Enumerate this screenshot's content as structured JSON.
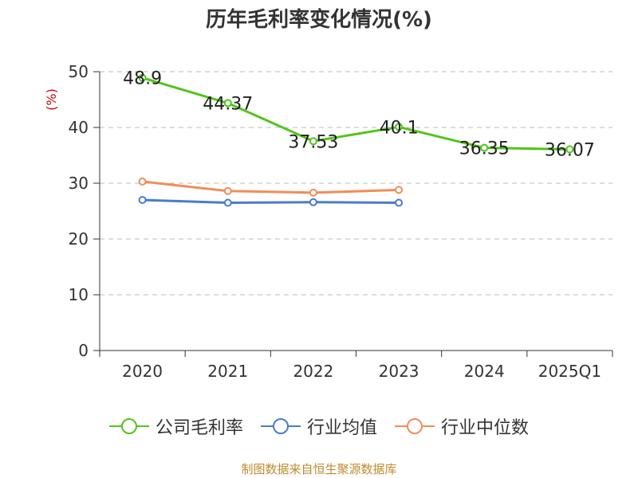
{
  "chart_data": {
    "type": "line",
    "title": "历年毛利率变化情况(%)",
    "ylabel": "(%)",
    "xlabel": "",
    "categories": [
      "2020",
      "2021",
      "2022",
      "2023",
      "2024",
      "2025Q1"
    ],
    "ylim": [
      0,
      50
    ],
    "yticks": [
      0,
      10,
      20,
      30,
      40,
      50
    ],
    "grid": true,
    "legend_position": "bottom",
    "series": [
      {
        "name": "公司毛利率",
        "color": "#52c41a",
        "values": [
          48.9,
          44.37,
          37.53,
          40.1,
          36.35,
          36.07
        ],
        "labels": [
          "48.9",
          "44.37",
          "37.53",
          "40.1",
          "36.35",
          "36.07"
        ]
      },
      {
        "name": "行业均值",
        "color": "#4a7bd0",
        "values": [
          27.0,
          26.5,
          26.6,
          26.5,
          null,
          null
        ]
      },
      {
        "name": "行业中位数",
        "color": "#f28c5a",
        "values": [
          30.3,
          28.6,
          28.3,
          28.8,
          null,
          null
        ]
      }
    ]
  },
  "footer": {
    "source": "制图数据来自恒生聚源数据库"
  }
}
